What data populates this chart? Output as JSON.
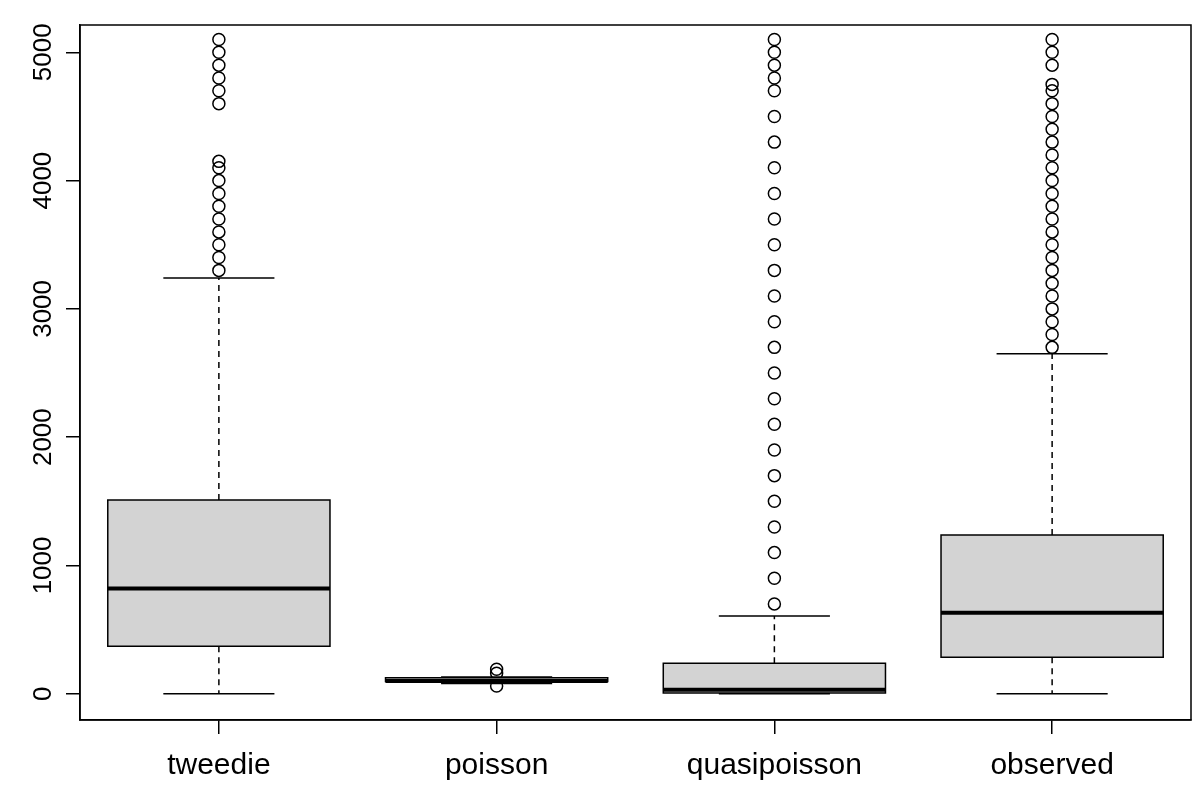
{
  "chart_data": {
    "type": "box",
    "categories": [
      "tweedie",
      "poisson",
      "quasipoisson",
      "observed"
    ],
    "color": "#d3d3d3",
    "ylim": [
      -205,
      5213
    ],
    "yticks": [
      0,
      1000,
      2000,
      3000,
      4000,
      5000
    ],
    "grid": false,
    "legend": false,
    "boxes": [
      {
        "low": 0,
        "q1": 370,
        "median": 820,
        "q3": 1510,
        "high": 3240,
        "outliers": [
          3300,
          3400,
          3500,
          3600,
          3700,
          3800,
          3900,
          4000,
          4100,
          4150,
          4600,
          4700,
          4800,
          4900,
          5000,
          5100
        ]
      },
      {
        "low": 80,
        "q1": 95,
        "median": 100,
        "q3": 125,
        "high": 130,
        "outliers": [
          60,
          160,
          190
        ]
      },
      {
        "low": 0,
        "q1": 5,
        "median": 30,
        "q3": 237,
        "high": 605,
        "outliers": [
          700,
          900,
          1100,
          1300,
          1500,
          1700,
          1900,
          2100,
          2300,
          2500,
          2700,
          2900,
          3100,
          3300,
          3500,
          3700,
          3900,
          4100,
          4300,
          4500,
          4700,
          4800,
          4900,
          5000,
          5100
        ]
      },
      {
        "low": 0,
        "q1": 284,
        "median": 631,
        "q3": 1238,
        "high": 2650,
        "outliers": [
          2700,
          2800,
          2900,
          3000,
          3100,
          3200,
          3300,
          3400,
          3500,
          3600,
          3700,
          3800,
          3900,
          4000,
          4100,
          4200,
          4300,
          4400,
          4500,
          4600,
          4700,
          4750,
          4900,
          5000,
          5100
        ]
      }
    ]
  }
}
